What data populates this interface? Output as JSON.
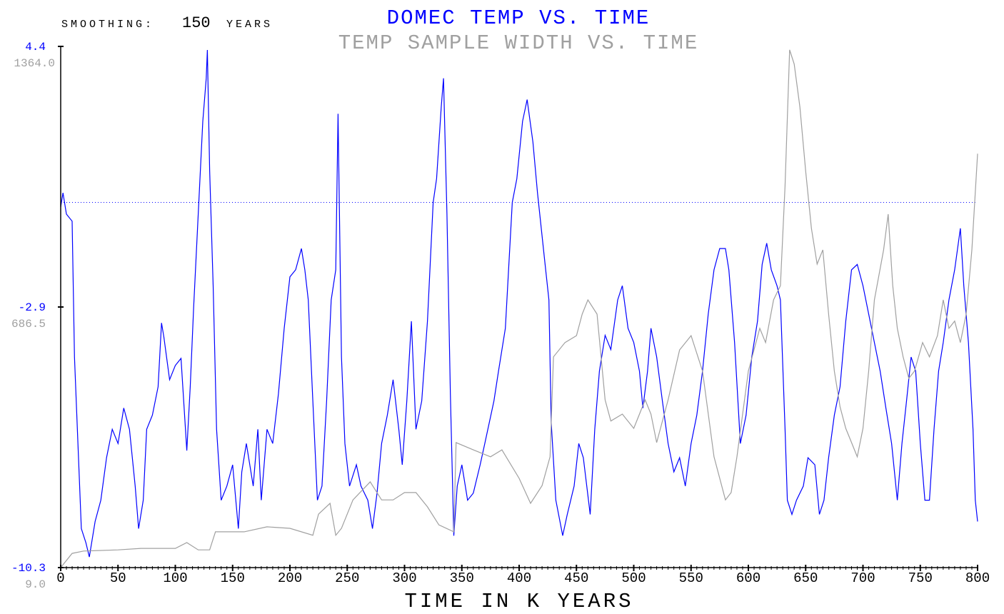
{
  "chart_data": {
    "type": "line",
    "smoothing_label": "SMOOTHING:",
    "smoothing_value": "150",
    "smoothing_unit": "YEARS",
    "title": "DOMEC TEMP VS. TIME",
    "subtitle": "TEMP SAMPLE WIDTH VS. TIME",
    "xlabel": "TIME IN K YEARS",
    "xlim": [
      0,
      800
    ],
    "x_ticks": [
      "0",
      "50",
      "100",
      "150",
      "200",
      "250",
      "300",
      "350",
      "400",
      "450",
      "500",
      "550",
      "600",
      "650",
      "700",
      "750",
      "800"
    ],
    "y_left": {
      "ylim": [
        -10.3,
        4.4
      ],
      "ticks": [
        "4.4",
        "-2.9",
        "-10.3"
      ]
    },
    "y_gray": {
      "ylim": [
        9.0,
        1364.0
      ],
      "ticks": [
        "1364.0",
        "686.5",
        "9.0"
      ]
    },
    "reference_line": 0.0,
    "colors": {
      "temp": "#0000ff",
      "width": "#a0a0a0",
      "axis": "#000000"
    },
    "series": [
      {
        "name": "DOMEC TEMP",
        "axis": "left",
        "x": [
          0,
          2,
          5,
          10,
          12,
          15,
          18,
          22,
          25,
          30,
          35,
          40,
          45,
          50,
          55,
          60,
          65,
          68,
          72,
          75,
          80,
          85,
          88,
          90,
          95,
          100,
          105,
          110,
          113,
          116,
          120,
          124,
          127,
          128,
          130,
          133,
          136,
          140,
          145,
          150,
          155,
          158,
          162,
          168,
          172,
          175,
          180,
          185,
          190,
          195,
          200,
          205,
          210,
          213,
          216,
          220,
          224,
          228,
          232,
          236,
          240,
          242,
          245,
          248,
          252,
          258,
          262,
          268,
          272,
          276,
          280,
          285,
          290,
          295,
          298,
          302,
          306,
          310,
          315,
          320,
          325,
          328,
          332,
          334,
          337,
          340,
          343,
          346,
          350,
          355,
          360,
          366,
          370,
          378,
          382,
          388,
          394,
          398,
          403,
          407,
          412,
          416,
          422,
          426,
          428,
          432,
          438,
          442,
          448,
          452,
          456,
          462,
          466,
          470,
          475,
          480,
          486,
          490,
          495,
          500,
          505,
          508,
          512,
          515,
          520,
          525,
          530,
          535,
          540,
          545,
          550,
          555,
          560,
          565,
          570,
          575,
          580,
          583,
          588,
          593,
          598,
          603,
          608,
          612,
          616,
          620,
          625,
          628,
          632,
          634,
          638,
          642,
          648,
          652,
          658,
          662,
          666,
          670,
          675,
          680,
          685,
          690,
          695,
          700,
          705,
          710,
          715,
          720,
          725,
          730,
          734,
          738,
          742,
          746,
          750,
          754,
          758,
          762,
          766,
          770,
          775,
          780,
          785,
          788,
          792,
          796,
          798,
          800
        ],
        "y": [
          -0.13,
          0.27,
          -0.33,
          -0.53,
          -4.36,
          -6.78,
          -9.2,
          -9.6,
          -10.0,
          -9.0,
          -8.4,
          -7.2,
          -6.4,
          -6.8,
          -5.8,
          -6.4,
          -8.0,
          -9.2,
          -8.4,
          -6.4,
          -6.0,
          -5.2,
          -3.4,
          -3.8,
          -5.0,
          -4.6,
          -4.4,
          -7.0,
          -5.2,
          -2.95,
          -0.33,
          2.29,
          3.5,
          4.3,
          0.9,
          -2.35,
          -6.4,
          -8.4,
          -8.0,
          -7.4,
          -9.2,
          -7.6,
          -6.8,
          -8.0,
          -6.4,
          -8.4,
          -6.4,
          -6.8,
          -5.4,
          -3.55,
          -2.1,
          -1.9,
          -1.3,
          -1.9,
          -2.75,
          -5.6,
          -8.4,
          -8.0,
          -5.6,
          -2.75,
          -1.9,
          2.5,
          -4.36,
          -6.8,
          -8.0,
          -7.4,
          -8.0,
          -8.4,
          -9.2,
          -8.2,
          -6.8,
          -6.0,
          -5.0,
          -6.4,
          -7.4,
          -5.6,
          -3.35,
          -6.4,
          -5.6,
          -3.35,
          0.0,
          0.67,
          2.69,
          3.5,
          -0.33,
          -5.4,
          -9.4,
          -8.0,
          -7.4,
          -8.4,
          -8.2,
          -7.4,
          -6.8,
          -5.6,
          -4.76,
          -3.55,
          0.0,
          0.67,
          2.29,
          2.9,
          1.7,
          0.27,
          -1.55,
          -2.75,
          -6.2,
          -8.4,
          -9.4,
          -8.8,
          -8.0,
          -6.8,
          -7.2,
          -8.8,
          -6.4,
          -4.76,
          -3.75,
          -4.15,
          -2.75,
          -2.35,
          -3.55,
          -3.95,
          -4.76,
          -5.8,
          -4.76,
          -3.55,
          -4.36,
          -5.6,
          -6.8,
          -7.6,
          -7.2,
          -8.0,
          -6.8,
          -6.0,
          -4.76,
          -3.15,
          -1.9,
          -1.3,
          -1.3,
          -1.9,
          -3.95,
          -6.8,
          -6.0,
          -4.36,
          -3.35,
          -1.75,
          -1.15,
          -1.9,
          -2.35,
          -2.75,
          -6.4,
          -8.4,
          -8.8,
          -8.4,
          -8.0,
          -7.2,
          -7.4,
          -8.8,
          -8.4,
          -7.2,
          -6.0,
          -5.2,
          -3.35,
          -1.9,
          -1.75,
          -2.35,
          -3.15,
          -3.95,
          -4.76,
          -5.8,
          -6.8,
          -8.4,
          -6.8,
          -5.6,
          -4.36,
          -4.76,
          -6.8,
          -8.4,
          -8.4,
          -6.4,
          -4.76,
          -3.95,
          -2.75,
          -1.9,
          -0.73,
          -2.35,
          -3.95,
          -6.4,
          -8.4,
          -9.0
        ]
      },
      {
        "name": "TEMP SAMPLE WIDTH",
        "axis": "gray",
        "x": [
          0,
          10,
          20,
          50,
          70,
          100,
          110,
          120,
          130,
          135,
          140,
          160,
          180,
          200,
          220,
          225,
          235,
          240,
          245,
          255,
          270,
          280,
          290,
          300,
          310,
          320,
          330,
          343,
          345,
          360,
          375,
          385,
          400,
          410,
          420,
          427,
          430,
          440,
          450,
          455,
          460,
          468,
          475,
          480,
          490,
          500,
          510,
          515,
          520,
          530,
          540,
          550,
          560,
          570,
          580,
          585,
          590,
          600,
          610,
          615,
          622,
          628,
          632,
          636,
          640,
          645,
          650,
          655,
          660,
          665,
          670,
          675,
          680,
          685,
          690,
          695,
          700,
          705,
          710,
          718,
          722,
          726,
          730,
          735,
          740,
          745,
          752,
          758,
          765,
          770,
          775,
          780,
          785,
          790,
          795,
          800
        ],
        "y": [
          9,
          46,
          52,
          55,
          59,
          59,
          74,
          55,
          55,
          102,
          102,
          102,
          115,
          111,
          93,
          148,
          176,
          93,
          111,
          185,
          232,
          185,
          185,
          204,
          204,
          167,
          120,
          102,
          334,
          315,
          297,
          315,
          241,
          176,
          222,
          297,
          557,
          594,
          612,
          668,
          705,
          668,
          445,
          390,
          408,
          371,
          445,
          408,
          334,
          445,
          575,
          612,
          520,
          297,
          185,
          204,
          297,
          520,
          631,
          594,
          705,
          742,
          1002,
          1355,
          1318,
          1206,
          1039,
          891,
          798,
          835,
          668,
          520,
          427,
          371,
          334,
          297,
          371,
          520,
          705,
          835,
          928,
          742,
          631,
          557,
          501,
          520,
          594,
          557,
          612,
          705,
          631,
          650,
          594,
          668,
          835,
          1085
        ]
      }
    ]
  }
}
